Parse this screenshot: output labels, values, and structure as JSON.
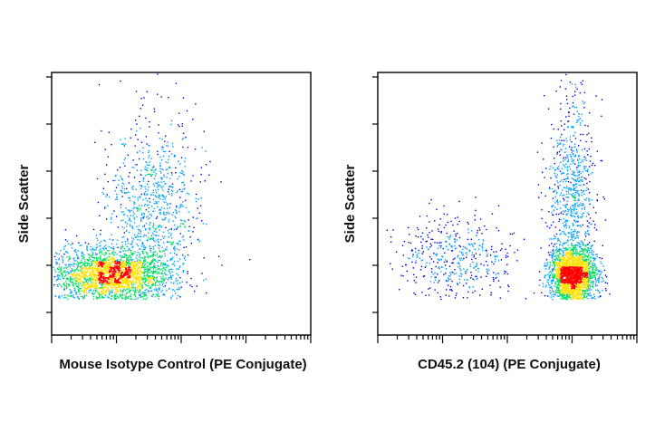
{
  "chart_data": [
    {
      "type": "scatter",
      "subtype": "flow-cytometry density scatter",
      "xlabel": "Mouse Isotype Control (PE Conjugate)",
      "ylabel": "Side Scatter",
      "x_scale": "log (4 decades)",
      "y_scale": "linear",
      "populations": [
        {
          "x_center": 0.9,
          "y_center": 0.12,
          "spread_x": 0.45,
          "spread_y": 0.05,
          "share": 0.72
        },
        {
          "x_center": 1.55,
          "y_center": 0.42,
          "spread_x": 0.35,
          "spread_y": 0.17,
          "share": 0.28
        }
      ],
      "density_colors": [
        "#0000d0",
        "#00a0ff",
        "#00e060",
        "#ffe000",
        "#ff0000"
      ]
    },
    {
      "type": "scatter",
      "subtype": "flow-cytometry density scatter",
      "xlabel": "CD45.2 (104) (PE Conjugate)",
      "ylabel": "Side Scatter",
      "x_scale": "log (4 decades)",
      "y_scale": "linear",
      "populations": [
        {
          "x_center": 3.0,
          "y_center": 0.12,
          "spread_x": 0.18,
          "spread_y": 0.05,
          "share": 0.62
        },
        {
          "x_center": 3.0,
          "y_center": 0.5,
          "spread_x": 0.18,
          "spread_y": 0.18,
          "share": 0.24
        },
        {
          "x_center": 1.2,
          "y_center": 0.2,
          "spread_x": 0.45,
          "spread_y": 0.08,
          "share": 0.14
        }
      ],
      "density_colors": [
        "#0000d0",
        "#00a0ff",
        "#00e060",
        "#ffe000",
        "#ff0000"
      ]
    }
  ]
}
